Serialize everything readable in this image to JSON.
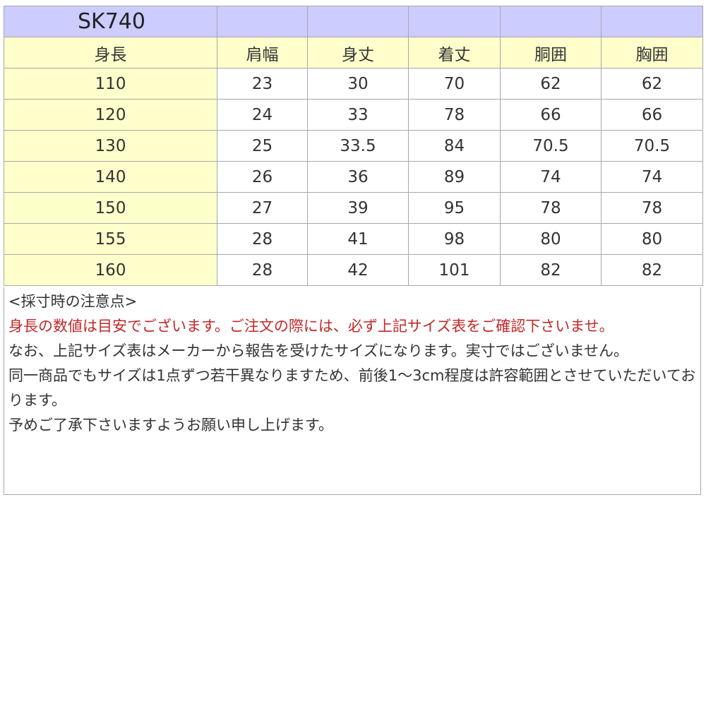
{
  "table": {
    "model": "SK740",
    "headers": [
      "身長",
      "肩幅",
      "身丈",
      "着丈",
      "胴囲",
      "胸囲"
    ],
    "rows": [
      [
        "110",
        "23",
        "30",
        "70",
        "62",
        "62"
      ],
      [
        "120",
        "24",
        "33",
        "78",
        "66",
        "66"
      ],
      [
        "130",
        "25",
        "33.5",
        "84",
        "70.5",
        "70.5"
      ],
      [
        "140",
        "26",
        "36",
        "89",
        "74",
        "74"
      ],
      [
        "150",
        "27",
        "39",
        "95",
        "78",
        "78"
      ],
      [
        "155",
        "28",
        "41",
        "98",
        "80",
        "80"
      ],
      [
        "160",
        "28",
        "42",
        "101",
        "82",
        "82"
      ]
    ]
  },
  "notes": {
    "heading": "<採寸時の注意点>",
    "warning": "身長の数値は目安でございます。ご注文の際には、必ず上記サイズ表をご確認下さいませ。",
    "lines": [
      "なお、上記サイズ表はメーカーから報告を受けたサイズになります。実寸ではございません。",
      "同一商品でもサイズは1点ずつ若干異なりますため、前後1～3cm程度は許容範囲とさせていただいております。",
      "予めご了承下さいますようお願い申し上げます。"
    ]
  },
  "colors": {
    "title_row": "#ccccff",
    "label_cells": "#ffffcc",
    "warning_text": "#c0282a",
    "border": "#a8a8a8"
  }
}
